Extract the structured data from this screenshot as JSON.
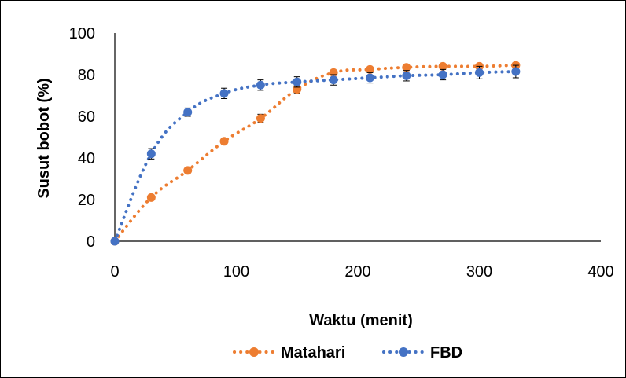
{
  "chart_data": {
    "type": "scatter",
    "xlabel": "Waktu (menit)",
    "ylabel": "Susut bobot (%)",
    "xlim": [
      0,
      400
    ],
    "ylim": [
      0,
      100
    ],
    "xticks": [
      0,
      100,
      200,
      300,
      400
    ],
    "yticks": [
      0,
      20,
      40,
      60,
      80,
      100
    ],
    "grid": false,
    "legend_position": "bottom",
    "series": [
      {
        "name": "Matahari",
        "color": "#ED7D31",
        "marker": "circle",
        "line_style": "dotted",
        "x": [
          0,
          30,
          60,
          90,
          120,
          150,
          180,
          210,
          240,
          270,
          300,
          330
        ],
        "y": [
          0,
          21,
          34,
          48,
          59,
          73,
          81,
          82.5,
          83.5,
          84,
          84,
          84.5
        ],
        "error": [
          0,
          1.2,
          1.2,
          1.2,
          2,
          2,
          1.2,
          1,
          1,
          1,
          1,
          1
        ]
      },
      {
        "name": "FBD",
        "color": "#4472C4",
        "marker": "circle",
        "line_style": "dotted",
        "x": [
          0,
          30,
          60,
          90,
          120,
          150,
          180,
          210,
          240,
          270,
          300,
          330
        ],
        "y": [
          0,
          42,
          62,
          71,
          75,
          76.5,
          77.5,
          78.5,
          79.5,
          80,
          81,
          81.5
        ],
        "error": [
          0,
          2.5,
          2,
          2.5,
          2.5,
          2.5,
          2.5,
          2.5,
          2.5,
          2.5,
          3,
          3
        ]
      }
    ]
  }
}
